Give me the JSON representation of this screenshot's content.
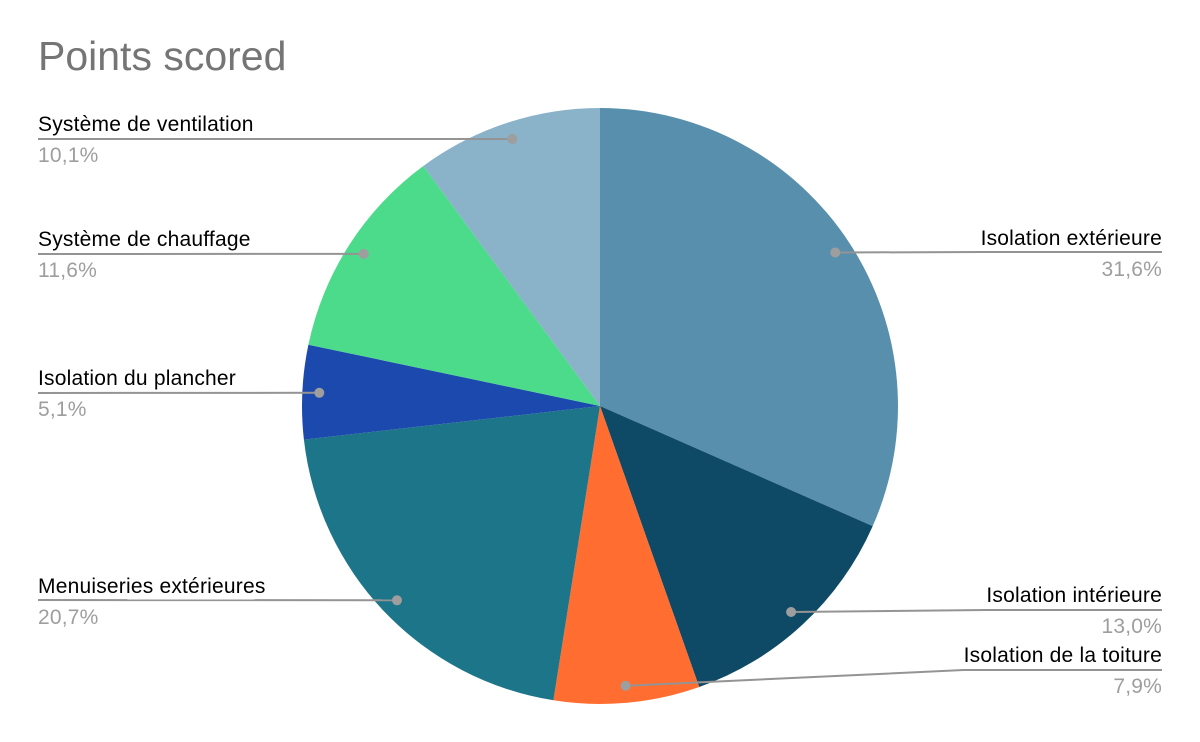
{
  "chart_data": {
    "type": "pie",
    "title": "Points scored",
    "unit": "%",
    "direction": "clockwise",
    "start_angle_deg": 0,
    "legend": "none",
    "label_style": "callout labels with leader lines and dots",
    "slices": [
      {
        "label": "Isolation extérieure",
        "value": 31.6,
        "pct_label": "31,6%",
        "color": "#588fad",
        "label_side": "right"
      },
      {
        "label": "Isolation intérieure",
        "value": 13.0,
        "pct_label": "13,0%",
        "color": "#0e4a66",
        "label_side": "right"
      },
      {
        "label": "Isolation de la toiture",
        "value": 7.9,
        "pct_label": "7,9%",
        "color": "#ff6d31",
        "label_side": "right"
      },
      {
        "label": "Menuiseries extérieures",
        "value": 20.7,
        "pct_label": "20,7%",
        "color": "#1d7589",
        "label_side": "left"
      },
      {
        "label": "Isolation du plancher",
        "value": 5.1,
        "pct_label": "5,1%",
        "color": "#1c49ad",
        "label_side": "left"
      },
      {
        "label": "Système de chauffage",
        "value": 11.6,
        "pct_label": "11,6%",
        "color": "#4cda8b",
        "label_side": "left"
      },
      {
        "label": "Système de ventilation",
        "value": 10.1,
        "pct_label": "10,1%",
        "color": "#8ab2c8",
        "label_side": "left"
      }
    ],
    "colors": {
      "background": "#ffffff",
      "title_text": "#757575",
      "label_text": "#000000",
      "pct_text": "#9e9e9e",
      "leader_line": "#949494",
      "leader_dot": "#9e9e9e"
    }
  }
}
